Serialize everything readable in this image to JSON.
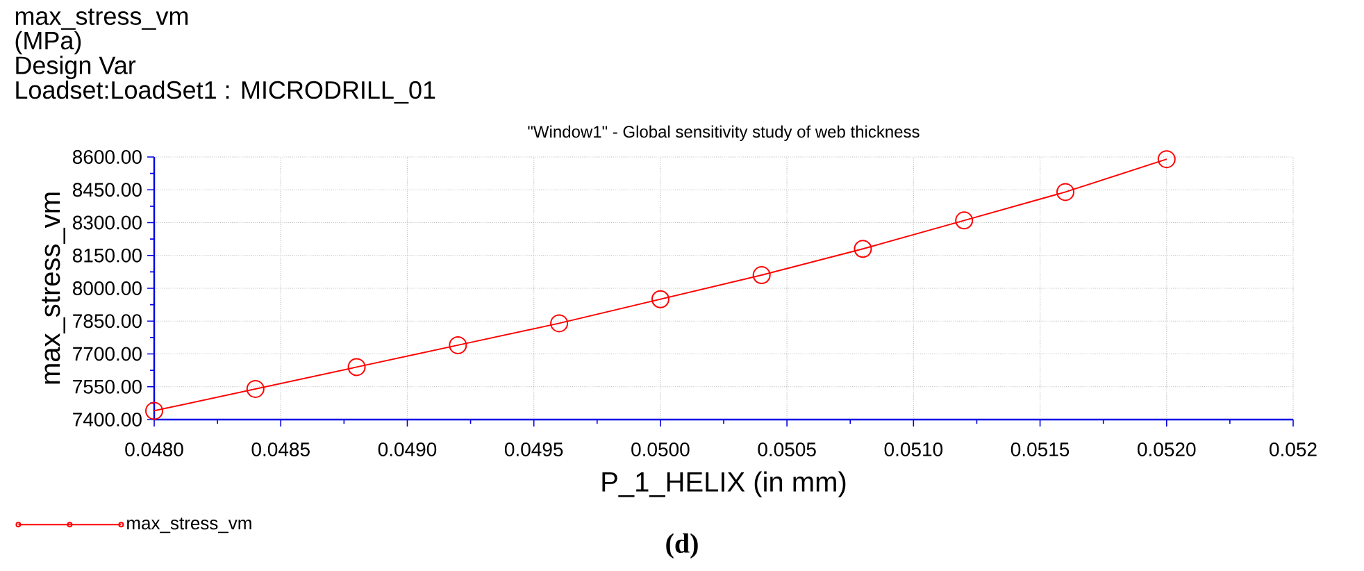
{
  "chart_data": {
    "type": "line",
    "title": "\"Window1\" - Global sensitivity study of web thickness",
    "xlabel": "P_1_HELIX (in mm)",
    "ylabel": "max_stress_vm",
    "annotations": [
      "max_stress_vm",
      "(MPa)",
      "Design Var",
      "Loadset:LoadSet1 :  MICRODRILL_01",
      "(d)"
    ],
    "x": [
      0.048,
      0.0484,
      0.0488,
      0.0492,
      0.0496,
      0.05,
      0.0504,
      0.0508,
      0.0512,
      0.0516,
      0.052
    ],
    "series": [
      {
        "name": "max_stress_vm",
        "color": "#ff0000",
        "values": [
          7440,
          7540,
          7640,
          7740,
          7840,
          7950,
          8060,
          8180,
          8310,
          8440,
          8590
        ]
      }
    ],
    "xlim": [
      0.048,
      0.0525
    ],
    "ylim": [
      7400,
      8600
    ],
    "xticks": [
      {
        "value": 0.048,
        "label": "0.0480"
      },
      {
        "value": 0.0485,
        "label": "0.0485"
      },
      {
        "value": 0.049,
        "label": "0.0490"
      },
      {
        "value": 0.0495,
        "label": "0.0495"
      },
      {
        "value": 0.05,
        "label": "0.0500"
      },
      {
        "value": 0.0505,
        "label": "0.0505"
      },
      {
        "value": 0.051,
        "label": "0.0510"
      },
      {
        "value": 0.0515,
        "label": "0.0515"
      },
      {
        "value": 0.052,
        "label": "0.0520"
      },
      {
        "value": 0.0525,
        "label": "0.052"
      }
    ],
    "yticks": [
      {
        "value": 7400,
        "label": "7400.00"
      },
      {
        "value": 7550,
        "label": "7550.00"
      },
      {
        "value": 7700,
        "label": "7700.00"
      },
      {
        "value": 7850,
        "label": "7850.00"
      },
      {
        "value": 8000,
        "label": "8000.00"
      },
      {
        "value": 8150,
        "label": "8150.00"
      },
      {
        "value": 8300,
        "label": "8300.00"
      },
      {
        "value": 8450,
        "label": "8450.00"
      },
      {
        "value": 8600,
        "label": "8600.00"
      }
    ],
    "grid": true,
    "legend": "bottom left",
    "marker": "circle",
    "line_style": "solid"
  }
}
